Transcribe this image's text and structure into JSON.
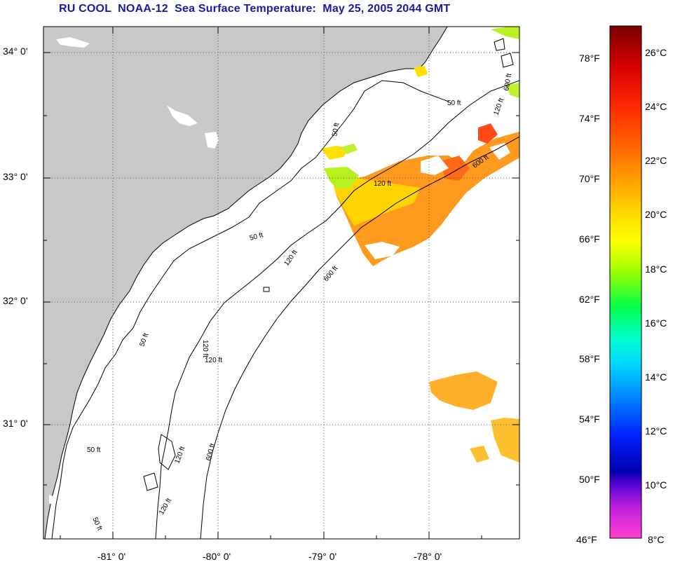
{
  "title": "RU COOL  NOAA-12  Sea Surface Temperature:  May 25, 2005 2044 GMT",
  "lat_labels": [
    "34° 0'",
    "33° 0'",
    "32° 0'",
    "31° 0'"
  ],
  "lon_labels": [
    "-81° 0'",
    "-80° 0'",
    "-79° 0'",
    "-78° 0'"
  ],
  "contour_labels": [
    "50 ft",
    "50 ft",
    "50 ft",
    "50 ft",
    "50 ft",
    "50 ft",
    "120 ft",
    "120 ft",
    "120 ft",
    "120 ft",
    "120 ft",
    "120 ft",
    "120 ft",
    "600 ft",
    "600 ft",
    "600 ft",
    "600 ft"
  ],
  "colorbar": {
    "f_labels": [
      "78°F",
      "74°F",
      "70°F",
      "66°F",
      "62°F",
      "58°F",
      "54°F",
      "50°F",
      "46°F"
    ],
    "c_labels": [
      "26°C",
      "24°C",
      "22°C",
      "20°C",
      "18°C",
      "16°C",
      "14°C",
      "12°C",
      "10°C",
      "8°C"
    ]
  },
  "colors": {
    "land": "#c8c8c8",
    "ocean": "#ffffff",
    "title": "#1a1aa6"
  }
}
